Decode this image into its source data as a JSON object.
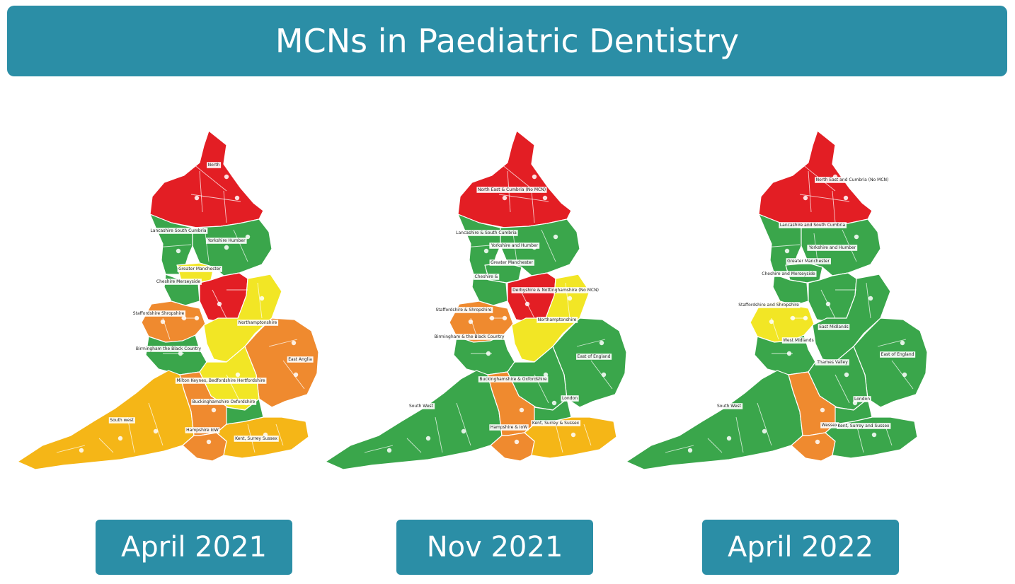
{
  "title": "MCNs in Paediatric Dentistry",
  "colors": {
    "red": "#e31e24",
    "green": "#3aa64b",
    "yellow": "#f2e625",
    "orange": "#ef8a2f",
    "amber": "#f5b617",
    "banner": "#2b8ea6"
  },
  "maps": [
    {
      "date": "April 2021",
      "regions": {
        "ne": "red",
        "nw": "green",
        "york": "green",
        "gm": "yellow",
        "ches": "green",
        "c": "red",
        "wm": "orange",
        "bham": "green",
        "em": "yellow",
        "ea": "orange",
        "mk": "yellow",
        "sw": "amber",
        "bk": "orange",
        "hants": "orange",
        "ksx": "amber",
        "lon": "green"
      },
      "labels": [
        {
          "text": "North"
        },
        {
          "text": "Lancashire South Cumbria"
        },
        {
          "text": "Yorkshire Humber"
        },
        {
          "text": "Greater Manchester"
        },
        {
          "text": "Cheshire Merseyside"
        },
        {
          "text": "Staffordshire Shropshire"
        },
        {
          "text": "Northamptonshire"
        },
        {
          "text": "Birmingham the Black Country"
        },
        {
          "text": "East Anglia"
        },
        {
          "text": "Milton Keynes, Bedfordshire Hertfordshire"
        },
        {
          "text": "Buckinghamshire Oxfordshire"
        },
        {
          "text": "South west"
        },
        {
          "text": "Hampshire IoW"
        },
        {
          "text": "Kent, Surrey Sussex"
        }
      ]
    },
    {
      "date": "Nov 2021",
      "regions": {
        "ne": "red",
        "nw": "green",
        "york": "green",
        "gm": "green",
        "ches": "green",
        "c": "red",
        "wm": "orange",
        "bham": "green",
        "em": "yellow",
        "ea": "green",
        "mk": "green",
        "sw": "green",
        "bk": "orange",
        "hants": "orange",
        "ksx": "amber",
        "lon": "green"
      },
      "labels": [
        {
          "text": "North East & Cumbria (No MCN)"
        },
        {
          "text": "Lancashire & South Cumbria"
        },
        {
          "text": "Yorkshire and Humber"
        },
        {
          "text": "Greater Manchester"
        },
        {
          "text": "Cheshire &"
        },
        {
          "text": "Derbyshire & Nottinghamshire (No MCN)"
        },
        {
          "text": "Staffordshire & Shropshire"
        },
        {
          "text": "Northamptonshire"
        },
        {
          "text": "Birmingham & the Black Country"
        },
        {
          "text": "East of England"
        },
        {
          "text": "Buckinghamshire & Oxfordshire"
        },
        {
          "text": "London"
        },
        {
          "text": "South West"
        },
        {
          "text": "Hampshire & IoW"
        },
        {
          "text": "Kent, Surrey & Sussex"
        }
      ]
    },
    {
      "date": "April 2022",
      "regions": {
        "ne": "red",
        "nw": "green",
        "york": "green",
        "gm": "green",
        "ches": "green",
        "c": "green",
        "wm": "yellow",
        "bham": "green",
        "em": "green",
        "ea": "green",
        "mk": "green",
        "sw": "green",
        "bk": "orange",
        "hants": "orange",
        "ksx": "green",
        "lon": "green"
      },
      "labels": [
        {
          "text": "North East and Cumbria (No MCN)"
        },
        {
          "text": "Lancashire and South Cumbria"
        },
        {
          "text": "Yorkshire and Humber"
        },
        {
          "text": "Greater Manchester"
        },
        {
          "text": "Cheshire and Merseyside"
        },
        {
          "text": "Staffordshire and Shropshire"
        },
        {
          "text": "East Midlands"
        },
        {
          "text": "West Midlands"
        },
        {
          "text": "East of England"
        },
        {
          "text": "Thames Valley"
        },
        {
          "text": "London"
        },
        {
          "text": "South West"
        },
        {
          "text": "Wessex"
        },
        {
          "text": "Kent, Surrey and Sussex"
        }
      ]
    }
  ]
}
